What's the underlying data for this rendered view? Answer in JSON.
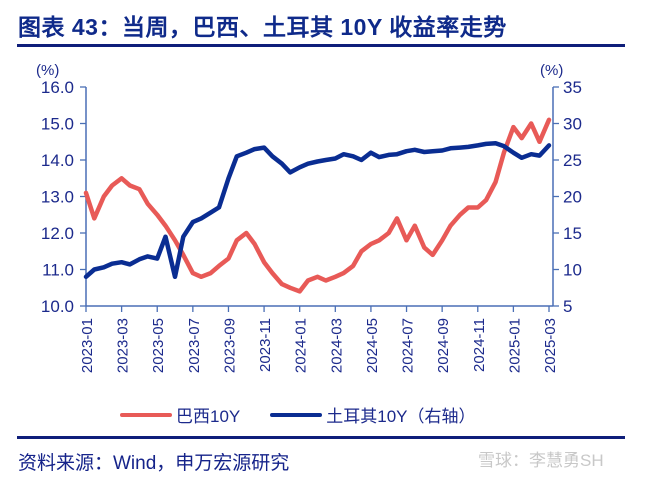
{
  "title": "图表 43：当周，巴西、土耳其 10Y 收益率走势",
  "source": "资料来源：Wind，申万宏源研究",
  "watermark": "雪球：李慧勇SH",
  "colors": {
    "brazil": "#e85a57",
    "turkey": "#0a2d92",
    "axis": "#4a6fb5",
    "text": "#1c2a8c"
  },
  "chart_data": {
    "type": "line",
    "title": "当周，巴西、土耳其 10Y 收益率走势",
    "xlabel": "",
    "ylabel_left": "(%)",
    "ylabel_right": "(%)",
    "ylim_left": [
      10.0,
      16.0
    ],
    "ylim_right": [
      5,
      35
    ],
    "yticks_left": [
      "10.0",
      "11.0",
      "12.0",
      "13.0",
      "14.0",
      "15.0",
      "16.0"
    ],
    "yticks_right": [
      "5",
      "10",
      "15",
      "20",
      "25",
      "30",
      "35"
    ],
    "x_ticks": [
      "2023-01",
      "2023-03",
      "2023-05",
      "2023-07",
      "2023-09",
      "2023-11",
      "2024-01",
      "2024-03",
      "2024-05",
      "2024-07",
      "2024-09",
      "2024-11",
      "2025-01",
      "2025-03"
    ],
    "grid": false,
    "legend_position": "bottom",
    "x": [
      "2023-01",
      "2023-01-15",
      "2023-02",
      "2023-02-15",
      "2023-03",
      "2023-03-15",
      "2023-04",
      "2023-04-15",
      "2023-05",
      "2023-05-15",
      "2023-06",
      "2023-06-15",
      "2023-07",
      "2023-07-15",
      "2023-08",
      "2023-08-15",
      "2023-09",
      "2023-09-15",
      "2023-10",
      "2023-10-15",
      "2023-11",
      "2023-11-15",
      "2023-12",
      "2023-12-15",
      "2024-01",
      "2024-01-15",
      "2024-02",
      "2024-02-15",
      "2024-03",
      "2024-03-15",
      "2024-04",
      "2024-04-15",
      "2024-05",
      "2024-05-15",
      "2024-06",
      "2024-06-15",
      "2024-07",
      "2024-07-15",
      "2024-08",
      "2024-08-15",
      "2024-09",
      "2024-09-15",
      "2024-10",
      "2024-10-15",
      "2024-11",
      "2024-11-15",
      "2024-12",
      "2024-12-15",
      "2025-01",
      "2025-01-15",
      "2025-02",
      "2025-02-15",
      "2025-03"
    ],
    "series": [
      {
        "name": "巴西10Y",
        "axis": "left",
        "values": [
          13.1,
          12.4,
          13.0,
          13.3,
          13.5,
          13.3,
          13.2,
          12.8,
          12.5,
          12.2,
          11.8,
          11.4,
          10.9,
          10.8,
          10.9,
          11.1,
          11.3,
          11.8,
          12.0,
          11.7,
          11.2,
          10.9,
          10.6,
          10.5,
          10.4,
          10.7,
          10.8,
          10.7,
          10.8,
          10.9,
          11.1,
          11.5,
          11.7,
          11.8,
          12.0,
          12.4,
          11.8,
          12.2,
          11.6,
          11.4,
          11.8,
          12.2,
          12.5,
          12.7,
          12.7,
          12.9,
          13.4,
          14.2,
          14.9,
          14.6,
          15.0,
          14.5,
          15.1
        ]
      },
      {
        "name": "土耳其10Y（右轴）",
        "axis": "right",
        "values": [
          9.0,
          10.0,
          10.3,
          10.8,
          11.0,
          10.7,
          11.4,
          11.8,
          11.5,
          14.5,
          9.0,
          14.5,
          16.5,
          17.0,
          17.8,
          18.5,
          22.5,
          25.5,
          26.0,
          26.5,
          26.7,
          25.5,
          24.5,
          23.3,
          24.0,
          24.5,
          24.8,
          25.0,
          25.2,
          25.8,
          25.5,
          25.0,
          26.0,
          25.4,
          25.7,
          25.8,
          26.2,
          26.4,
          26.1,
          26.2,
          26.3,
          26.6,
          26.7,
          26.8,
          27.0,
          27.2,
          27.3,
          26.9,
          26.0,
          25.3,
          25.8,
          25.6,
          27.0
        ]
      }
    ]
  },
  "legend": {
    "items": [
      {
        "label": "巴西10Y",
        "color": "#e85a57"
      },
      {
        "label": "土耳其10Y（右轴）",
        "color": "#0a2d92"
      }
    ]
  }
}
